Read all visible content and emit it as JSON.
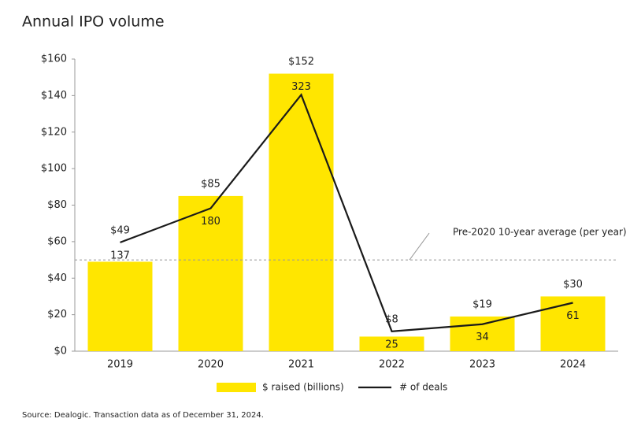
{
  "chart_data": {
    "type": "bar",
    "title": "Annual IPO volume",
    "categories": [
      "2019",
      "2020",
      "2021",
      "2022",
      "2023",
      "2024"
    ],
    "series": [
      {
        "name": "$ raised (billions)",
        "type": "bar",
        "color": "#ffe600",
        "values": [
          49,
          85,
          152,
          8,
          19,
          30
        ],
        "value_labels": [
          "$49",
          "$85",
          "$152",
          "$8",
          "$19",
          "$30"
        ]
      },
      {
        "name": "# of deals",
        "type": "line",
        "axis": "y2",
        "color": "#1a1a1a",
        "values": [
          137,
          180,
          323,
          25,
          34,
          61
        ]
      }
    ],
    "ylim": [
      0,
      160
    ],
    "yticks": [
      {
        "value": 0,
        "label": "$0"
      },
      {
        "value": 20,
        "label": "$20"
      },
      {
        "value": 40,
        "label": "$40"
      },
      {
        "value": 60,
        "label": "$60"
      },
      {
        "value": 80,
        "label": "$80"
      },
      {
        "value": 100,
        "label": "$100"
      },
      {
        "value": 120,
        "label": "$120"
      },
      {
        "value": 140,
        "label": "$140"
      },
      {
        "value": 160,
        "label": "$160"
      }
    ],
    "y2lim": [
      0,
      368
    ],
    "reference_line": {
      "value": 50,
      "label": "Pre-2020 10-year average (per year)"
    },
    "source": "Source: Dealogic. Transaction data as of December 31, 2024."
  }
}
